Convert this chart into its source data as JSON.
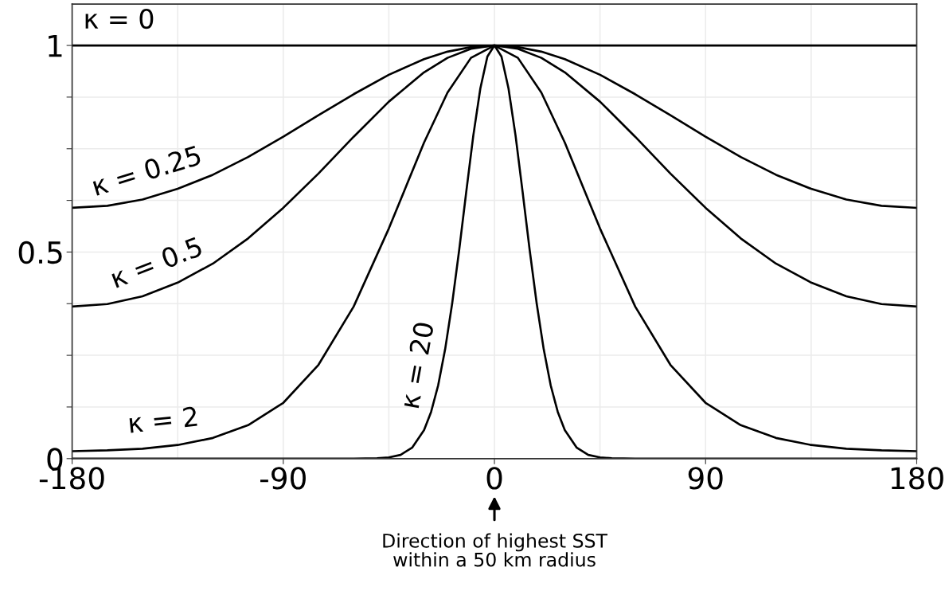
{
  "chart_data": {
    "type": "line",
    "xlim": [
      -180,
      180
    ],
    "ylim": [
      0,
      1.1
    ],
    "xticks": [
      -180,
      {
        "value": -135,
        "label": null
      },
      -90,
      {
        "value": -45,
        "label": null
      },
      0,
      {
        "value": 45,
        "label": null
      },
      90,
      {
        "value": 135,
        "label": null
      },
      180
    ],
    "yticks": [
      0,
      {
        "value": 0.125,
        "label": null
      },
      {
        "value": 0.25,
        "label": null
      },
      {
        "value": 0.375,
        "label": null
      },
      0.5,
      {
        "value": 0.625,
        "label": null
      },
      {
        "value": 0.75,
        "label": null
      },
      {
        "value": 0.875,
        "label": null
      },
      1
    ],
    "grid": true,
    "line_style": "solid",
    "marker": "none",
    "series": [
      {
        "name": "κ = 0",
        "color": "#000000",
        "x": [
          -180,
          180
        ],
        "values": [
          1,
          1
        ]
      },
      {
        "name": "κ = 0.25",
        "color": "#000000",
        "x": [
          -180,
          -165,
          -150,
          -135,
          -120,
          -105,
          -90,
          -75,
          -60,
          -45,
          -30,
          -20,
          -10,
          0,
          10,
          20,
          30,
          45,
          60,
          75,
          90,
          105,
          120,
          135,
          150,
          165,
          180
        ],
        "values": [
          0.607,
          0.612,
          0.627,
          0.653,
          0.687,
          0.73,
          0.779,
          0.831,
          0.882,
          0.929,
          0.967,
          0.985,
          0.996,
          1,
          0.996,
          0.985,
          0.967,
          0.929,
          0.882,
          0.831,
          0.779,
          0.73,
          0.687,
          0.653,
          0.627,
          0.612,
          0.607
        ]
      },
      {
        "name": "κ = 0.5",
        "color": "#000000",
        "x": [
          -180,
          -165,
          -150,
          -135,
          -120,
          -105,
          -90,
          -75,
          -60,
          -45,
          -30,
          -20,
          -10,
          0,
          10,
          20,
          30,
          45,
          60,
          75,
          90,
          105,
          120,
          135,
          150,
          165,
          180
        ],
        "values": [
          0.368,
          0.374,
          0.393,
          0.426,
          0.472,
          0.533,
          0.607,
          0.69,
          0.779,
          0.864,
          0.935,
          0.97,
          0.992,
          1,
          0.992,
          0.97,
          0.935,
          0.864,
          0.779,
          0.69,
          0.607,
          0.533,
          0.472,
          0.426,
          0.393,
          0.374,
          0.368
        ]
      },
      {
        "name": "κ = 2",
        "color": "#000000",
        "x": [
          -180,
          -165,
          -150,
          -135,
          -120,
          -105,
          -90,
          -75,
          -60,
          -45,
          -30,
          -20,
          -10,
          0,
          10,
          20,
          30,
          45,
          60,
          75,
          90,
          105,
          120,
          135,
          150,
          165,
          180
        ],
        "values": [
          0.018,
          0.02,
          0.024,
          0.033,
          0.05,
          0.081,
          0.135,
          0.227,
          0.368,
          0.557,
          0.765,
          0.886,
          0.97,
          1,
          0.97,
          0.886,
          0.765,
          0.557,
          0.368,
          0.227,
          0.135,
          0.081,
          0.05,
          0.033,
          0.024,
          0.02,
          0.018
        ]
      },
      {
        "name": "κ = 20",
        "color": "#000000",
        "x": [
          -180,
          -60,
          -50,
          -45,
          -40,
          -35,
          -30,
          -27,
          -24,
          -21,
          -18,
          -15,
          -12,
          -9,
          -6,
          -3,
          0,
          3,
          6,
          9,
          12,
          15,
          18,
          21,
          24,
          27,
          30,
          35,
          40,
          45,
          50,
          60,
          180
        ],
        "values": [
          0,
          0,
          0.001,
          0.003,
          0.009,
          0.027,
          0.069,
          0.113,
          0.177,
          0.265,
          0.376,
          0.506,
          0.646,
          0.782,
          0.896,
          0.973,
          1,
          0.973,
          0.896,
          0.782,
          0.646,
          0.506,
          0.376,
          0.265,
          0.177,
          0.113,
          0.069,
          0.027,
          0.009,
          0.003,
          0.001,
          0,
          0
        ]
      }
    ],
    "annotations": [
      "Direction of highest SST\nwithin a 50 km radius"
    ]
  }
}
